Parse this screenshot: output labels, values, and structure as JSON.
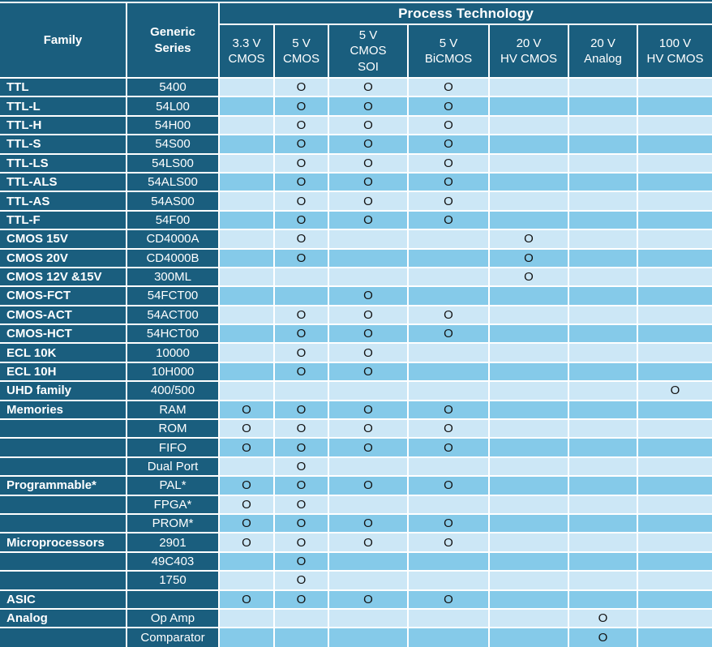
{
  "chart_data": {
    "type": "table",
    "title": "Process Technology",
    "corner_headers": {
      "family": "Family",
      "series": "Generic\nSeries"
    },
    "process_columns": [
      "3.3 V\nCMOS",
      "5 V\nCMOS",
      "5 V\nCMOS\nSOI",
      "5 V\nBiCMOS",
      "20 V\nHV CMOS",
      "20 V\nAnalog",
      "100 V\nHV CMOS"
    ],
    "marker": "O",
    "rows": [
      {
        "family": "TTL",
        "series": "5400",
        "marks": [
          0,
          1,
          1,
          1,
          0,
          0,
          0
        ]
      },
      {
        "family": "TTL-L",
        "series": "54L00",
        "marks": [
          0,
          1,
          1,
          1,
          0,
          0,
          0
        ]
      },
      {
        "family": "TTL-H",
        "series": "54H00",
        "marks": [
          0,
          1,
          1,
          1,
          0,
          0,
          0
        ]
      },
      {
        "family": "TTL-S",
        "series": "54S00",
        "marks": [
          0,
          1,
          1,
          1,
          0,
          0,
          0
        ]
      },
      {
        "family": "TTL-LS",
        "series": "54LS00",
        "marks": [
          0,
          1,
          1,
          1,
          0,
          0,
          0
        ]
      },
      {
        "family": "TTL-ALS",
        "series": "54ALS00",
        "marks": [
          0,
          1,
          1,
          1,
          0,
          0,
          0
        ]
      },
      {
        "family": "TTL-AS",
        "series": "54AS00",
        "marks": [
          0,
          1,
          1,
          1,
          0,
          0,
          0
        ]
      },
      {
        "family": "TTL-F",
        "series": "54F00",
        "marks": [
          0,
          1,
          1,
          1,
          0,
          0,
          0
        ]
      },
      {
        "family": "CMOS 15V",
        "series": "CD4000A",
        "marks": [
          0,
          1,
          0,
          0,
          1,
          0,
          0
        ]
      },
      {
        "family": "CMOS 20V",
        "series": "CD4000B",
        "marks": [
          0,
          1,
          0,
          0,
          1,
          0,
          0
        ]
      },
      {
        "family": "CMOS 12V &15V",
        "series": "300ML",
        "marks": [
          0,
          0,
          0,
          0,
          1,
          0,
          0
        ]
      },
      {
        "family": "CMOS-FCT",
        "series": "54FCT00",
        "marks": [
          0,
          0,
          1,
          0,
          0,
          0,
          0
        ]
      },
      {
        "family": "CMOS-ACT",
        "series": "54ACT00",
        "marks": [
          0,
          1,
          1,
          1,
          0,
          0,
          0
        ]
      },
      {
        "family": "CMOS-HCT",
        "series": "54HCT00",
        "marks": [
          0,
          1,
          1,
          1,
          0,
          0,
          0
        ]
      },
      {
        "family": "ECL 10K",
        "series": "10000",
        "marks": [
          0,
          1,
          1,
          0,
          0,
          0,
          0
        ]
      },
      {
        "family": "ECL 10H",
        "series": "10H000",
        "marks": [
          0,
          1,
          1,
          0,
          0,
          0,
          0
        ]
      },
      {
        "family": "UHD family",
        "series": "400/500",
        "marks": [
          0,
          0,
          0,
          0,
          0,
          0,
          1
        ]
      },
      {
        "family": "Memories",
        "series": "RAM",
        "marks": [
          1,
          1,
          1,
          1,
          0,
          0,
          0
        ]
      },
      {
        "family": "",
        "series": "ROM",
        "marks": [
          1,
          1,
          1,
          1,
          0,
          0,
          0
        ]
      },
      {
        "family": "",
        "series": "FIFO",
        "marks": [
          1,
          1,
          1,
          1,
          0,
          0,
          0
        ]
      },
      {
        "family": "",
        "series": "Dual Port",
        "marks": [
          0,
          1,
          0,
          0,
          0,
          0,
          0
        ]
      },
      {
        "family": "Programmable*",
        "series": "PAL*",
        "marks": [
          1,
          1,
          1,
          1,
          0,
          0,
          0
        ]
      },
      {
        "family": "",
        "series": "FPGA*",
        "marks": [
          1,
          1,
          0,
          0,
          0,
          0,
          0
        ]
      },
      {
        "family": "",
        "series": "PROM*",
        "marks": [
          1,
          1,
          1,
          1,
          0,
          0,
          0
        ]
      },
      {
        "family": "Microprocessors",
        "series": "2901",
        "marks": [
          1,
          1,
          1,
          1,
          0,
          0,
          0
        ]
      },
      {
        "family": "",
        "series": "49C403",
        "marks": [
          0,
          1,
          0,
          0,
          0,
          0,
          0
        ]
      },
      {
        "family": "",
        "series": "1750",
        "marks": [
          0,
          1,
          0,
          0,
          0,
          0,
          0
        ]
      },
      {
        "family": "ASIC",
        "series": "",
        "marks": [
          1,
          1,
          1,
          1,
          0,
          0,
          0
        ]
      },
      {
        "family": "Analog",
        "series": "Op Amp",
        "marks": [
          0,
          0,
          0,
          0,
          0,
          1,
          0
        ]
      },
      {
        "family": "",
        "series": "Comparator",
        "marks": [
          0,
          0,
          0,
          0,
          0,
          1,
          0
        ]
      }
    ]
  },
  "colors": {
    "header_bg": "#1A5E7E",
    "row_light": "#CCE7F6",
    "row_dark": "#85CAE9",
    "grid": "#FFFFFF",
    "header_text": "#FFFFFF",
    "mark_text": "#121212"
  }
}
